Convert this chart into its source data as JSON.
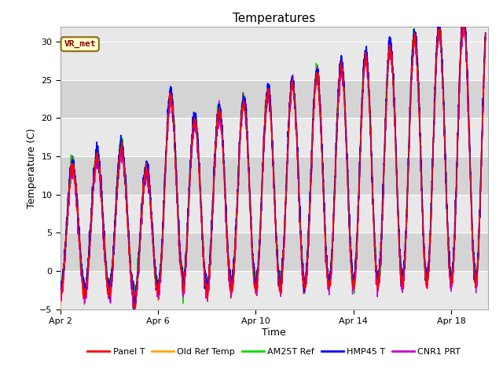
{
  "title": "Temperatures",
  "xlabel": "Time",
  "ylabel": "Temperature (C)",
  "xlim_days": [
    2.0,
    19.5
  ],
  "ylim": [
    -5,
    32
  ],
  "yticks": [
    -5,
    0,
    5,
    10,
    15,
    20,
    25,
    30
  ],
  "xtick_positions": [
    2,
    6,
    10,
    14,
    18
  ],
  "xtick_labels": [
    "Apr 2",
    "Apr 6",
    "Apr 10",
    "Apr 14",
    "Apr 18"
  ],
  "line_colors": {
    "Panel T": "#ff0000",
    "Old Ref Temp": "#ffa500",
    "AM25T Ref": "#00dd00",
    "HMP45 T": "#0000ff",
    "CNR1 PRT": "#cc00cc"
  },
  "legend_labels": [
    "Panel T",
    "Old Ref Temp",
    "AM25T Ref",
    "HMP45 T",
    "CNR1 PRT"
  ],
  "annotation_text": "VR_met",
  "fig_bg_color": "#ffffff",
  "plot_bg_color": "#e8e8e8",
  "band_light_color": "#e8e8e8",
  "band_dark_color": "#d4d4d4",
  "title_fontsize": 11,
  "axis_label_fontsize": 9,
  "tick_fontsize": 8,
  "grid_color": "#ffffff",
  "grid_linewidth": 0.8
}
